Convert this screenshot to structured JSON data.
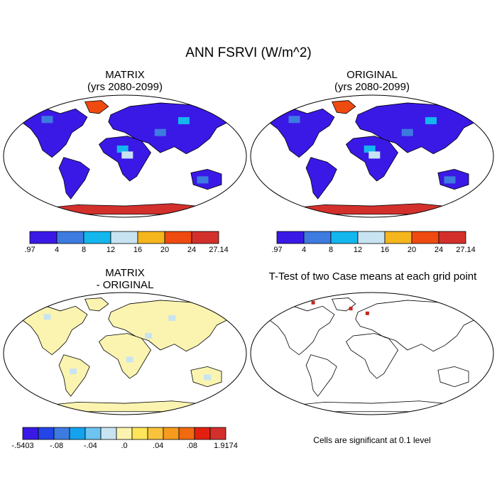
{
  "figure": {
    "title": "ANN FSRVI (W/m^2)"
  },
  "panels": [
    {
      "id": "matrix",
      "title_line1": "MATRIX",
      "title_line2": "(yrs 2080-2099)"
    },
    {
      "id": "original",
      "title_line1": "ORIGINAL",
      "title_line2": "(yrs 2080-2099)"
    },
    {
      "id": "difference",
      "title_line1": "MATRIX",
      "title_line2": "- ORIGINAL"
    },
    {
      "id": "ttest",
      "title_line1": "T-Test of two Case means at each grid point",
      "title_line2": ""
    }
  ],
  "colorbars": {
    "field": {
      "colors": [
        "#3a19e6",
        "#3d7be0",
        "#14b6ee",
        "#c8e4f2",
        "#f5b51d",
        "#ef4a10",
        "#d3302c"
      ],
      "labels": [
        ".97",
        "4",
        "8",
        "12",
        "16",
        "20",
        "24",
        "27.14"
      ]
    },
    "diff": {
      "colors": [
        "#3a19e6",
        "#2345e8",
        "#3d7be0",
        "#14a2ee",
        "#6cc4ef",
        "#c8e4f2",
        "#fbf4b0",
        "#fde45a",
        "#f8c23c",
        "#f79b1e",
        "#f06a10",
        "#e32010",
        "#d3302c"
      ],
      "labels": [
        "-.5403",
        "-.08",
        "-.04",
        ".0",
        ".04",
        ".08",
        "1.9174"
      ]
    }
  },
  "ttest_note": "Cells are significant at 0.1 level"
}
